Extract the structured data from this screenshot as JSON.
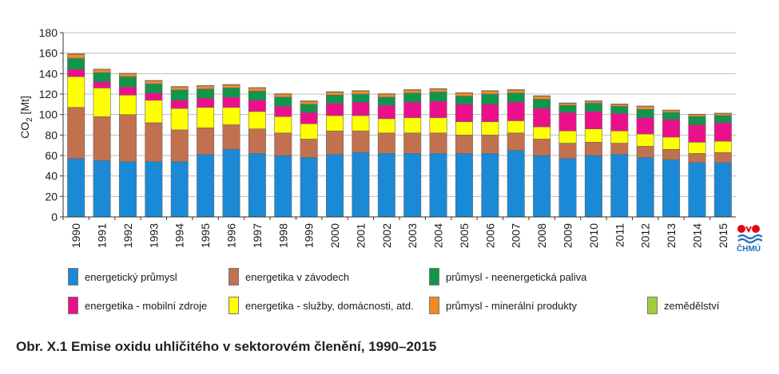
{
  "chart_data": {
    "type": "bar",
    "stacked": true,
    "ylabel": "CO2 [Mt]",
    "ylim": [
      0,
      180
    ],
    "yticks": [
      0,
      20,
      40,
      60,
      80,
      100,
      120,
      140,
      160,
      180
    ],
    "grid": true,
    "categories": [
      "1990",
      "1991",
      "1992",
      "1993",
      "1994",
      "1995",
      "1996",
      "1997",
      "1998",
      "1999",
      "2000",
      "2001",
      "2002",
      "2003",
      "2004",
      "2005",
      "2006",
      "2007",
      "2008",
      "2009",
      "2010",
      "2011",
      "2012",
      "2013",
      "2014",
      "2015"
    ],
    "series": [
      {
        "name": "energetický průmysl",
        "color": "#1b8ad6",
        "values": [
          57,
          55,
          54,
          54,
          54,
          61,
          66,
          62,
          60,
          58,
          61,
          63,
          62,
          62,
          62,
          62,
          62,
          65,
          60,
          57,
          60,
          61,
          58,
          56,
          53,
          53
        ]
      },
      {
        "name": "energetika v závodech",
        "color": "#c2714f",
        "values": [
          50,
          43,
          46,
          38,
          31,
          26,
          24,
          24,
          22,
          18,
          23,
          21,
          20,
          20,
          20,
          18,
          18,
          17,
          16,
          15,
          13,
          11,
          11,
          10,
          9,
          10
        ]
      },
      {
        "name": "energetika - služby, domácnosti, atd.",
        "color": "#ffff00",
        "values": [
          30,
          28,
          19,
          22,
          21,
          20,
          17,
          17,
          16,
          15,
          15,
          15,
          14,
          15,
          15,
          13,
          13,
          12,
          12,
          12,
          13,
          12,
          12,
          12,
          11,
          11
        ]
      },
      {
        "name": "energetika - mobilní zdroje",
        "color": "#ec0f8c",
        "values": [
          7,
          6,
          8,
          7,
          8,
          9,
          10,
          11,
          10,
          11,
          12,
          13,
          13,
          15,
          16,
          17,
          17,
          18,
          18,
          18,
          17,
          17,
          16,
          17,
          17,
          18
        ]
      },
      {
        "name": "průmysl - neenergetická paliva",
        "color": "#10964a",
        "values": [
          11,
          9,
          10,
          9,
          10,
          9,
          9,
          9,
          9,
          8,
          8,
          8,
          8,
          9,
          9,
          8,
          10,
          9,
          9,
          7,
          8,
          7,
          8,
          7,
          8,
          7
        ]
      },
      {
        "name": "průmysl - minerální produkty",
        "color": "#f08a24",
        "values": [
          4,
          3,
          3,
          3,
          3,
          3,
          3,
          3,
          3,
          3,
          3,
          3,
          3,
          3,
          3,
          3,
          3,
          3,
          3,
          2,
          2,
          2,
          3,
          2,
          2,
          2
        ]
      },
      {
        "name": "zemědělství",
        "color": "#a4cc3a",
        "values": [
          0.4,
          0.4,
          0.4,
          0.4,
          0.4,
          0.4,
          0.4,
          0.4,
          0.4,
          0.4,
          0.4,
          0.4,
          0.4,
          0.4,
          0.4,
          0.4,
          0.4,
          0.4,
          0.4,
          0.4,
          0.4,
          0.4,
          0.4,
          0.4,
          0.4,
          0.4
        ]
      }
    ]
  },
  "legend": {
    "items": [
      {
        "label": "energetický průmysl",
        "color": "#1b8ad6"
      },
      {
        "label": "energetika v závodech",
        "color": "#c2714f"
      },
      {
        "label": "průmysl - neenergetická paliva",
        "color": "#10964a"
      },
      {
        "label": "energetika - mobilní zdroje",
        "color": "#ec0f8c"
      },
      {
        "label": "energetika - služby, domácnosti, atd.",
        "color": "#ffff00"
      },
      {
        "label": "průmysl - minerální produkty",
        "color": "#f08a24"
      },
      {
        "label": "zemědělství",
        "color": "#a4cc3a"
      }
    ]
  },
  "caption": "Obr. X.1  Emise oxidu uhličitého v sektorovém členění, 1990–2015",
  "logo": {
    "text": "ČHMÚ",
    "colors": [
      "#e30613",
      "#1c6fb8"
    ]
  }
}
